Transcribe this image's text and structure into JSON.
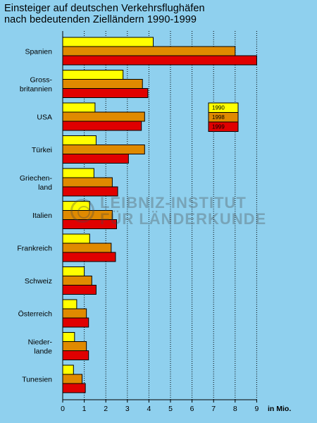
{
  "header": {
    "title_line1": "Einsteiger auf deutschen Verkehrsflughäfen",
    "title_line2": "nach bedeutenden Zielländern 1990-1999"
  },
  "watermark": {
    "line1": "LEIBNIZ-INSTITUT",
    "line2": "FÜR LÄNDERKUNDE"
  },
  "colors": {
    "background": "#8fd0ee",
    "bar_1990": "#ffff00",
    "bar_1998": "#e08a00",
    "bar_1999": "#e00000"
  },
  "chart_data": {
    "type": "bar",
    "orientation": "horizontal",
    "title": "Einsteiger auf deutschen Verkehrsflughäfen nach bedeutenden Zielländern 1990-1999",
    "xlabel": "in Mio.",
    "xlim": [
      0,
      9
    ],
    "x_ticks": [
      0,
      1,
      2,
      3,
      4,
      5,
      6,
      7,
      8,
      9
    ],
    "grid": "vertical dotted",
    "legend_position": "right",
    "categories": [
      [
        "Spanien"
      ],
      [
        "Gross-",
        "britannien"
      ],
      [
        "USA"
      ],
      [
        "Türkei"
      ],
      [
        "Griechen-",
        "land"
      ],
      [
        "Italien"
      ],
      [
        "Frankreich"
      ],
      [
        "Schweiz"
      ],
      [
        "Österreich"
      ],
      [
        "Nieder-",
        "lande"
      ],
      [
        "Tunesien"
      ]
    ],
    "series": [
      {
        "name": "1990",
        "color": "#ffff00",
        "values": [
          4.2,
          2.8,
          1.5,
          1.55,
          1.45,
          1.25,
          1.25,
          1.0,
          0.65,
          0.55,
          0.5
        ]
      },
      {
        "name": "1998",
        "color": "#e08a00",
        "values": [
          8.0,
          3.7,
          3.8,
          3.8,
          2.3,
          2.3,
          2.25,
          1.35,
          1.1,
          1.1,
          0.9
        ]
      },
      {
        "name": "1999",
        "color": "#e00000",
        "values": [
          9.0,
          3.95,
          3.65,
          3.05,
          2.55,
          2.5,
          2.45,
          1.55,
          1.2,
          1.2,
          1.05
        ]
      }
    ]
  }
}
